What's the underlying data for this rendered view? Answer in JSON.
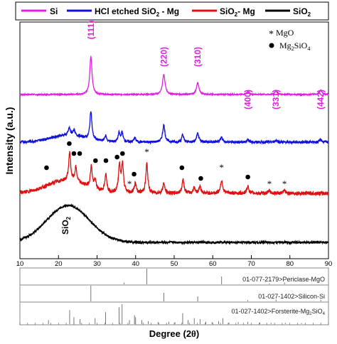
{
  "chart_data": [
    {
      "type": "line",
      "xlabel_main": "Degree (2",
      "xlabel_theta": "θ",
      "xlabel_close": ")",
      "ylabel": "Intensity (a.u.)",
      "xlim": [
        10,
        90
      ],
      "xticks": [
        10,
        20,
        30,
        40,
        50,
        60,
        70,
        80,
        90
      ],
      "legend": {
        "placement": "top",
        "entries": [
          {
            "label": "Si",
            "color": "#e020e0"
          },
          {
            "label": "HCl etched SiO",
            "sub": "2",
            "label_after": " - Mg",
            "color": "#1010dd"
          },
          {
            "label": "SiO",
            "sub": "2",
            "label_after": "- Mg",
            "color": "#e01010"
          },
          {
            "label": "SiO",
            "sub": "2",
            "label_after": "",
            "color": "#000000"
          }
        ]
      },
      "series": [
        {
          "name": "Si",
          "color": "#e020e0",
          "baseline": 0,
          "peaks": [
            {
              "x": 28.4,
              "h": 54,
              "w": 0.35
            },
            {
              "x": 47.3,
              "h": 28,
              "w": 0.4
            },
            {
              "x": 56.1,
              "h": 16,
              "w": 0.4
            },
            {
              "x": 69.1,
              "h": 4,
              "w": 0.4
            },
            {
              "x": 76.4,
              "h": 5,
              "w": 0.4
            },
            {
              "x": 88.0,
              "h": 6,
              "w": 0.4
            }
          ]
        },
        {
          "name": "HCl etched SiO2 - Mg",
          "color": "#1010dd",
          "baseline": 0,
          "hump": {
            "center": 22.5,
            "width": 4.5,
            "height": 10
          },
          "peaks": [
            {
              "x": 28.4,
              "h": 40,
              "w": 0.3
            },
            {
              "x": 47.3,
              "h": 24,
              "w": 0.35
            },
            {
              "x": 56.1,
              "h": 13,
              "w": 0.35
            },
            {
              "x": 22.8,
              "h": 10,
              "w": 0.3
            },
            {
              "x": 24.0,
              "h": 8,
              "w": 0.3
            },
            {
              "x": 32.2,
              "h": 8,
              "w": 0.3
            },
            {
              "x": 35.7,
              "h": 12,
              "w": 0.3
            },
            {
              "x": 36.5,
              "h": 13,
              "w": 0.3
            },
            {
              "x": 39.8,
              "h": 6,
              "w": 0.3
            },
            {
              "x": 52.2,
              "h": 10,
              "w": 0.3
            },
            {
              "x": 62.3,
              "h": 7,
              "w": 0.3
            },
            {
              "x": 69.1,
              "h": 4,
              "w": 0.3
            },
            {
              "x": 76.4,
              "h": 3,
              "w": 0.3
            },
            {
              "x": 88.0,
              "h": 4,
              "w": 0.3
            }
          ]
        },
        {
          "name": "SiO2- Mg",
          "color": "#e01010",
          "baseline": 0,
          "hump": {
            "center": 22.0,
            "width": 5,
            "height": 18
          },
          "peaks": [
            {
              "x": 22.9,
              "h": 40,
              "w": 0.3
            },
            {
              "x": 24.5,
              "h": 20,
              "w": 0.3
            },
            {
              "x": 28.5,
              "h": 30,
              "w": 0.3
            },
            {
              "x": 29.5,
              "h": 12,
              "w": 0.3
            },
            {
              "x": 32.3,
              "h": 24,
              "w": 0.3
            },
            {
              "x": 35.8,
              "h": 38,
              "w": 0.3
            },
            {
              "x": 36.6,
              "h": 40,
              "w": 0.3
            },
            {
              "x": 39.9,
              "h": 14,
              "w": 0.3
            },
            {
              "x": 42.9,
              "h": 42,
              "w": 0.3
            },
            {
              "x": 47.3,
              "h": 14,
              "w": 0.3
            },
            {
              "x": 52.3,
              "h": 20,
              "w": 0.3
            },
            {
              "x": 55.2,
              "h": 8,
              "w": 0.3
            },
            {
              "x": 56.7,
              "h": 10,
              "w": 0.3
            },
            {
              "x": 62.3,
              "h": 18,
              "w": 0.35
            },
            {
              "x": 69.1,
              "h": 10,
              "w": 0.3
            },
            {
              "x": 74.7,
              "h": 4,
              "w": 0.3
            },
            {
              "x": 78.6,
              "h": 4,
              "w": 0.3
            }
          ]
        },
        {
          "name": "SiO2",
          "color": "#000000",
          "baseline": 0,
          "hump": {
            "center": 22.5,
            "width": 5.5,
            "height": 52
          }
        }
      ],
      "peak_labels": [
        {
          "text": "(111)",
          "x": 28.4
        },
        {
          "text": "(220)",
          "x": 47.3
        },
        {
          "text": "(310)",
          "x": 56.1
        },
        {
          "text": "(400)",
          "x": 69.1
        },
        {
          "text": "(331)",
          "x": 76.4
        },
        {
          "text": "(442)",
          "x": 88.0
        }
      ],
      "markers": {
        "mgo_star": [
          38.4,
          42.9,
          62.3,
          74.7,
          78.6
        ],
        "mg2sio4_dot": [
          16.9,
          22.8,
          24.0,
          25.5,
          29.6,
          32.3,
          35.2,
          36.6,
          39.6,
          52.0,
          56.9,
          69.1
        ]
      },
      "annotation_text": "SiO",
      "annotation_sub": "2",
      "inset_legend": {
        "star_symbol": "*",
        "star_label": "MgO",
        "dot_label": "Mg",
        "dot_sub1": "2",
        "dot_mid": "SiO",
        "dot_sub2": "4"
      },
      "reference_patterns": [
        {
          "label": "01-077-2179>Periclase-MgO",
          "lines": [
            {
              "x": 37.0,
              "h": 0.1
            },
            {
              "x": 42.9,
              "h": 1.0
            },
            {
              "x": 62.3,
              "h": 0.5
            },
            {
              "x": 74.7,
              "h": 0.06
            },
            {
              "x": 78.6,
              "h": 0.12
            }
          ]
        },
        {
          "label": "01-027-1402>Silicon-Si",
          "lines": [
            {
              "x": 28.4,
              "h": 1.0
            },
            {
              "x": 47.3,
              "h": 0.55
            },
            {
              "x": 56.1,
              "h": 0.32
            },
            {
              "x": 69.1,
              "h": 0.08
            },
            {
              "x": 76.4,
              "h": 0.12
            },
            {
              "x": 88.0,
              "h": 0.1
            }
          ]
        },
        {
          "label_main": "01-027-1402>Forsterite-Mg",
          "label_sub": "2",
          "label_mid": "SiO",
          "label_sub2": "4",
          "lines": [
            {
              "x": 17.4,
              "h": 0.2
            },
            {
              "x": 22.9,
              "h": 0.7
            },
            {
              "x": 24.0,
              "h": 0.35
            },
            {
              "x": 25.6,
              "h": 0.25
            },
            {
              "x": 29.5,
              "h": 0.3
            },
            {
              "x": 32.2,
              "h": 0.6
            },
            {
              "x": 35.7,
              "h": 0.85
            },
            {
              "x": 36.5,
              "h": 1.0
            },
            {
              "x": 38.4,
              "h": 0.2
            },
            {
              "x": 39.7,
              "h": 0.45
            },
            {
              "x": 40.0,
              "h": 0.35
            },
            {
              "x": 41.6,
              "h": 0.2
            },
            {
              "x": 43.3,
              "h": 0.15
            },
            {
              "x": 45.8,
              "h": 0.1
            },
            {
              "x": 48.6,
              "h": 0.12
            },
            {
              "x": 50.2,
              "h": 0.1
            },
            {
              "x": 52.2,
              "h": 0.55
            },
            {
              "x": 53.6,
              "h": 0.2
            },
            {
              "x": 55.2,
              "h": 0.3
            },
            {
              "x": 56.7,
              "h": 0.25
            },
            {
              "x": 58.2,
              "h": 0.12
            },
            {
              "x": 59.8,
              "h": 0.1
            },
            {
              "x": 61.5,
              "h": 0.15
            },
            {
              "x": 62.6,
              "h": 0.3
            },
            {
              "x": 64.2,
              "h": 0.08
            },
            {
              "x": 66.6,
              "h": 0.1
            },
            {
              "x": 69.1,
              "h": 0.12
            },
            {
              "x": 72.2,
              "h": 0.08
            },
            {
              "x": 75.1,
              "h": 0.06
            },
            {
              "x": 78.8,
              "h": 0.06
            },
            {
              "x": 83.0,
              "h": 0.05
            }
          ]
        }
      ]
    }
  ]
}
